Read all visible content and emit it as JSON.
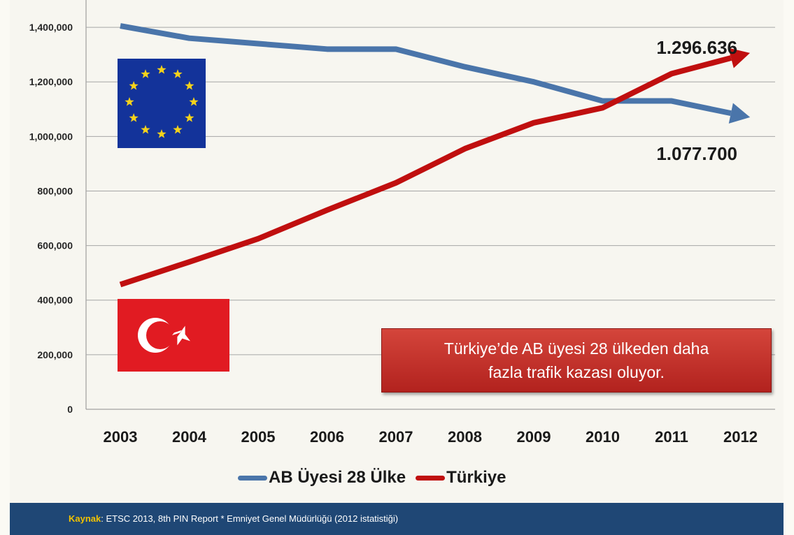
{
  "chart_data": {
    "type": "line",
    "categories": [
      "2003",
      "2004",
      "2005",
      "2006",
      "2007",
      "2008",
      "2009",
      "2010",
      "2011",
      "2012"
    ],
    "y_ticks": [
      "0",
      "200,000",
      "400,000",
      "600,000",
      "800,000",
      "1,000,000",
      "1,200,000",
      "1,400,000"
    ],
    "ylim": [
      0,
      1500000
    ],
    "grid": true,
    "legend_position": "bottom",
    "series": [
      {
        "name": "AB Üyesi 28 Ülke",
        "color": "#4a75aa",
        "values": [
          1405000,
          1360000,
          1340000,
          1320000,
          1320000,
          1255000,
          1200000,
          1130000,
          1130000,
          1077700
        ],
        "end_label": "1.077.700"
      },
      {
        "name": "Türkiye",
        "color": "#c00f0f",
        "values": [
          457000,
          540000,
          625000,
          730000,
          830000,
          955000,
          1050000,
          1105000,
          1230000,
          1296636
        ],
        "end_label": "1.296.636"
      }
    ]
  },
  "callout": {
    "line1": "Türkiye’de AB üyesi 28 ülkeden daha",
    "line2": "fazla trafik kazası oluyor."
  },
  "footer": {
    "label": "Kaynak",
    "text": ": ETSC 2013, 8th PIN Report * Emniyet Genel Müdürlüğü (2012 istatistiği)"
  }
}
